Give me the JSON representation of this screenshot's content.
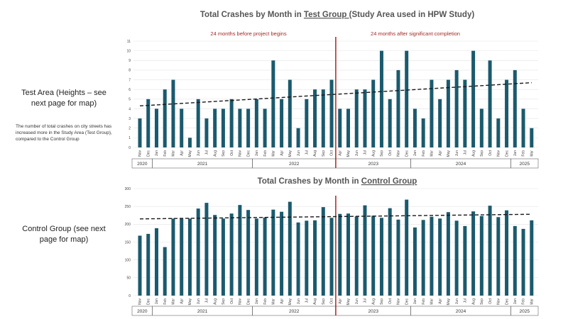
{
  "left_panel": {
    "test_label": "Test Area (Heights – see next page for map)",
    "note": "The number of total crashes on city streets has increased more in the Study Area (Test Group), compared to the Control Group",
    "control_label": "Control Group (see next page for map)"
  },
  "colors": {
    "bar": "#1b5a6e",
    "divider": "#b22222",
    "annotation": "#a52a2a",
    "trend": "#1a1a1a"
  },
  "chart_data": [
    {
      "type": "bar",
      "title_parts": [
        "Total Crashes by Month in ",
        "Test Group ",
        "(Study Area used in HPW Study)"
      ],
      "annotations": {
        "before": "24 months before project begins",
        "after": "24 months after significant completion"
      },
      "ylim": [
        0,
        11
      ],
      "yticks": [
        0,
        1,
        2,
        3,
        4,
        5,
        6,
        7,
        8,
        9,
        10,
        11
      ],
      "grid": true,
      "categories": [
        "Nov",
        "Dec",
        "Jan",
        "Feb",
        "Mar",
        "Apr",
        "May",
        "Jun",
        "Jul",
        "Aug",
        "Sep",
        "Oct",
        "Nov",
        "Dec",
        "Jan",
        "Feb",
        "Mar",
        "Apr",
        "May",
        "Jun",
        "Jul",
        "Aug",
        "Sep",
        "Oct",
        "Apr",
        "May",
        "Jun",
        "Jul",
        "Aug",
        "Sep",
        "Oct",
        "Nov",
        "Dec",
        "Jan",
        "Feb",
        "Mar",
        "Apr",
        "May",
        "Jun",
        "Jul",
        "Aug",
        "Sep",
        "Oct",
        "Nov",
        "Dec",
        "Jan",
        "Feb",
        "Mar"
      ],
      "years": [
        {
          "label": "2020",
          "count": 2
        },
        {
          "label": "2021",
          "count": 12
        },
        {
          "label": "2022",
          "count": 10
        },
        {
          "label": "2023",
          "count": 9
        },
        {
          "label": "2024",
          "count": 12
        },
        {
          "label": "2025",
          "count": 3
        }
      ],
      "values": [
        3,
        5,
        4,
        6,
        7,
        4,
        1,
        5,
        3,
        4,
        4,
        5,
        4,
        4,
        5,
        4,
        9,
        5,
        7,
        2,
        5,
        6,
        6,
        7,
        4,
        4,
        6,
        6,
        7,
        10,
        5,
        8,
        10,
        4,
        3,
        7,
        5,
        7,
        8,
        7,
        10,
        4,
        9,
        3,
        7,
        8,
        4,
        2
      ],
      "divider_after_index": 23,
      "trend": {
        "style": "dashed linear",
        "start": 4.3,
        "end": 6.7
      }
    },
    {
      "type": "bar",
      "title_parts": [
        "Total Crashes by Month in ",
        "Control Group",
        ""
      ],
      "ylim": [
        0,
        300
      ],
      "yticks": [
        0,
        50,
        100,
        150,
        200,
        250,
        300
      ],
      "grid": true,
      "categories": [
        "Nov",
        "Dec",
        "Jan",
        "Feb",
        "Mar",
        "Apr",
        "May",
        "Jun",
        "Jul",
        "Aug",
        "Sep",
        "Oct",
        "Nov",
        "Dec",
        "Jan",
        "Feb",
        "Mar",
        "Apr",
        "May",
        "Jun",
        "Jul",
        "Aug",
        "Sep",
        "Oct",
        "Apr",
        "May",
        "Jun",
        "Jul",
        "Aug",
        "Sep",
        "Oct",
        "Nov",
        "Dec",
        "Jan",
        "Feb",
        "Mar",
        "Apr",
        "May",
        "Jun",
        "Jul",
        "Aug",
        "Sep",
        "Oct",
        "Nov",
        "Dec",
        "Jan",
        "Feb",
        "Mar"
      ],
      "years": [
        {
          "label": "2020",
          "count": 2
        },
        {
          "label": "2021",
          "count": 12
        },
        {
          "label": "2022",
          "count": 10
        },
        {
          "label": "2023",
          "count": 9
        },
        {
          "label": "2024",
          "count": 12
        },
        {
          "label": "2025",
          "count": 3
        }
      ],
      "values": [
        168,
        173,
        189,
        136,
        216,
        216,
        216,
        244,
        260,
        226,
        216,
        230,
        254,
        240,
        216,
        219,
        241,
        235,
        263,
        205,
        210,
        211,
        248,
        218,
        229,
        230,
        222,
        253,
        224,
        218,
        245,
        213,
        269,
        191,
        212,
        221,
        216,
        234,
        210,
        195,
        236,
        223,
        252,
        220,
        239,
        195,
        187,
        211
      ],
      "divider_after_index": 23,
      "trend": {
        "style": "dashed linear",
        "start": 215,
        "end": 228
      }
    }
  ]
}
